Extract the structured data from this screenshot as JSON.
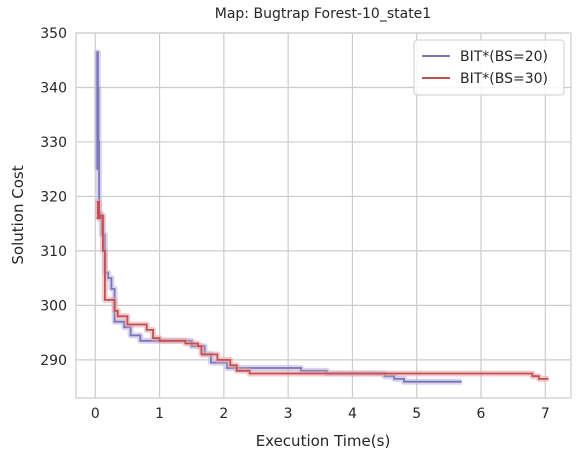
{
  "chart_data": {
    "type": "line",
    "title": "Map: Bugtrap Forest-10_state1",
    "xlabel": "Execution Time(s)",
    "ylabel": "Solution Cost",
    "xlim": [
      -0.3,
      7.4
    ],
    "ylim": [
      283,
      350
    ],
    "xticks": [
      0,
      1,
      2,
      3,
      4,
      5,
      6,
      7
    ],
    "yticks": [
      290,
      300,
      310,
      320,
      330,
      340,
      350
    ],
    "grid": true,
    "legend_position": "top-right",
    "series": [
      {
        "name": "BIT*(BS=20)",
        "color": "#7a74b8",
        "band_color": "#b8b2dc",
        "step": true,
        "x": [
          0.02,
          0.03,
          0.04,
          0.05,
          0.06,
          0.08,
          0.1,
          0.15,
          0.2,
          0.25,
          0.3,
          0.45,
          0.55,
          0.7,
          0.85,
          1.0,
          1.3,
          1.5,
          1.7,
          1.8,
          1.95,
          2.05,
          2.2,
          3.2,
          3.6,
          4.5,
          4.65,
          4.8,
          5.7
        ],
        "y": [
          325,
          346.5,
          340,
          330,
          317,
          316,
          313,
          306,
          305,
          303,
          297,
          296,
          294.5,
          293.5,
          293.5,
          293.5,
          293.5,
          292.5,
          291,
          289.5,
          289.5,
          288.5,
          288.5,
          288,
          287.5,
          287,
          286.5,
          286,
          286
        ]
      },
      {
        "name": "BIT*(BS=30)",
        "color": "#c44e52",
        "band_color": "#e3a6a8",
        "step": true,
        "x": [
          0.02,
          0.04,
          0.06,
          0.08,
          0.12,
          0.15,
          0.3,
          0.35,
          0.5,
          0.6,
          0.8,
          0.9,
          1.0,
          1.2,
          1.4,
          1.6,
          1.65,
          1.9,
          2.1,
          2.2,
          2.4,
          3.5,
          3.9,
          6.8,
          6.9,
          7.05
        ],
        "y": [
          316,
          319,
          316,
          316.5,
          310,
          301,
          299,
          298,
          296.5,
          296.5,
          295.5,
          294,
          293.5,
          293.5,
          293,
          292.5,
          291,
          290,
          289,
          288,
          287.5,
          287.5,
          287.5,
          287,
          286.5,
          286.5
        ]
      }
    ]
  }
}
